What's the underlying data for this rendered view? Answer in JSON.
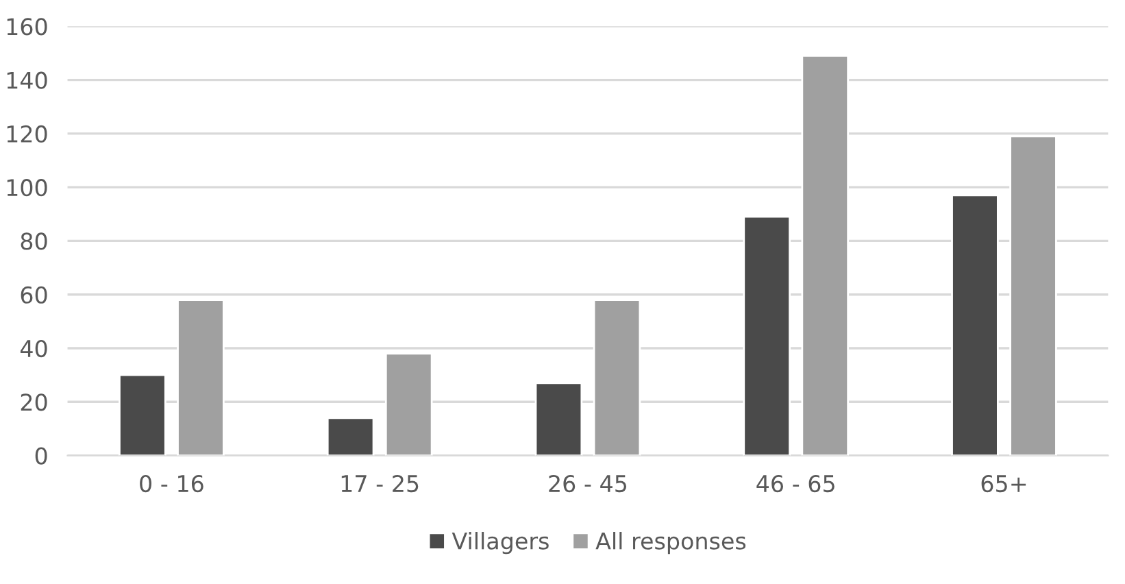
{
  "chart_data": {
    "type": "bar",
    "categories": [
      "0 - 16",
      "17 - 25",
      "26 - 45",
      "46 - 65",
      "65+"
    ],
    "series": [
      {
        "name": "Villagers",
        "color": "#4a4a4a",
        "values": [
          30,
          14,
          27,
          89,
          97
        ]
      },
      {
        "name": "All responses",
        "color": "#a0a0a0",
        "values": [
          58,
          38,
          58,
          149,
          119
        ]
      }
    ],
    "ylim": [
      0,
      160
    ],
    "yticks": [
      0,
      20,
      40,
      60,
      80,
      100,
      120,
      140,
      160
    ],
    "grid": "y",
    "legend": "bottom"
  }
}
